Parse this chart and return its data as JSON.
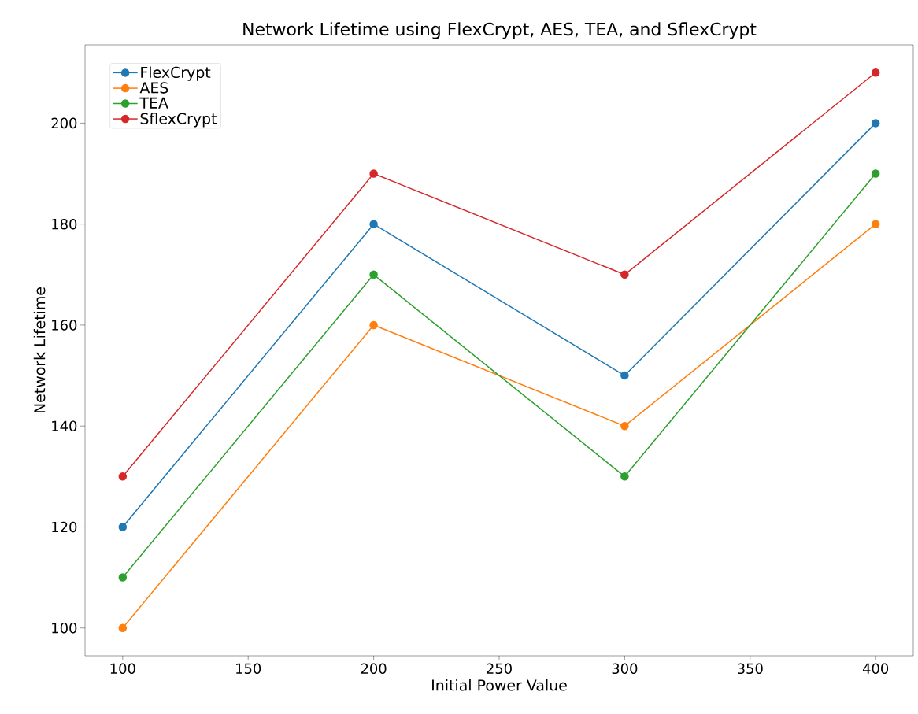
{
  "chart_data": {
    "type": "line",
    "title": "Network Lifetime using FlexCrypt, AES, TEA, and SflexCrypt",
    "xlabel": "Initial Power Value",
    "ylabel": "Network Lifetime",
    "x": [
      100,
      200,
      300,
      400
    ],
    "series": [
      {
        "name": "FlexCrypt",
        "color": "#1f77b4",
        "values": [
          120,
          180,
          150,
          200
        ]
      },
      {
        "name": "AES",
        "color": "#ff7f0e",
        "values": [
          100,
          160,
          140,
          180
        ]
      },
      {
        "name": "TEA",
        "color": "#2ca02c",
        "values": [
          110,
          170,
          130,
          190
        ]
      },
      {
        "name": "SflexCrypt",
        "color": "#d62728",
        "values": [
          130,
          190,
          170,
          210
        ]
      }
    ],
    "xlim": [
      85,
      415
    ],
    "ylim": [
      94.5,
      215.5
    ],
    "xticks": [
      100,
      150,
      200,
      250,
      300,
      350,
      400
    ],
    "yticks": [
      100,
      120,
      140,
      160,
      180,
      200
    ],
    "legend": "top left",
    "marker": "circle",
    "line_style": "solid",
    "grid": false
  }
}
